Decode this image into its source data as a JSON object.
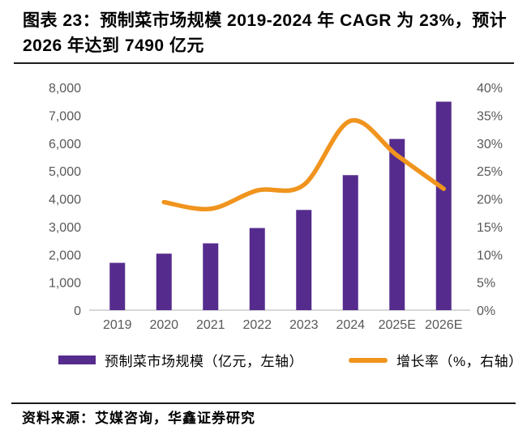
{
  "header": {
    "title": "图表 23：预制菜市场规模 2019-2024 年 CAGR 为 23%，预计 2026 年达到 7490 亿元"
  },
  "footer": {
    "source": "资料来源：艾媒咨询，华鑫证券研究"
  },
  "colors": {
    "bar": "#552C8D",
    "line": "#F0941E",
    "axis_text": "#595959",
    "axis_line": "#BFBFBF"
  },
  "chart_data": {
    "type": "bar",
    "subtype": "combo bar + smooth line, dual axis",
    "categories": [
      "2019",
      "2020",
      "2021",
      "2022",
      "2023",
      "2024",
      "2025E",
      "2026E"
    ],
    "series": [
      {
        "name": "预制菜市场规模（亿元，左轴）",
        "type": "bar",
        "axis": "left",
        "values": [
          1700,
          2030,
          2400,
          2950,
          3600,
          4850,
          6150,
          7490
        ]
      },
      {
        "name": "增长率（%，右轴）",
        "type": "line",
        "axis": "right",
        "values": [
          null,
          19.4,
          18.2,
          21.5,
          22.5,
          34.0,
          27.8,
          21.8
        ]
      }
    ],
    "left_axis": {
      "min": 0,
      "max": 8000,
      "step": 1000,
      "tick_labels": [
        "0",
        "1,000",
        "2,000",
        "3,000",
        "4,000",
        "5,000",
        "6,000",
        "7,000",
        "8,000"
      ]
    },
    "right_axis": {
      "min": 0,
      "max": 40,
      "step": 5,
      "tick_labels": [
        "0%",
        "5%",
        "10%",
        "15%",
        "20%",
        "25%",
        "30%",
        "35%",
        "40%"
      ]
    },
    "grid": false,
    "legend_position": "bottom"
  }
}
